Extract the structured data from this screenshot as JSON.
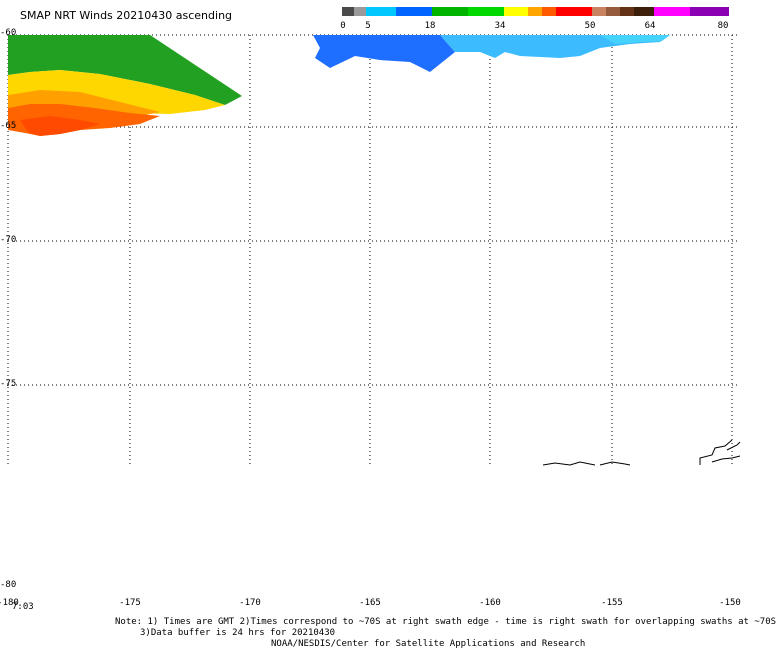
{
  "title": "SMAP NRT Winds 20210430 ascending",
  "colorbar": {
    "labels": [
      "0",
      "5",
      "18",
      "34",
      "50",
      "64",
      "80"
    ],
    "colors": [
      "#4a4a4a",
      "#9a9a9a",
      "#00c8ff",
      "#0064ff",
      "#00b400",
      "#00e000",
      "#ffff00",
      "#ffa500",
      "#ff5a00",
      "#ff0000",
      "#e60000",
      "#b46e50",
      "#824628",
      "#502814",
      "#ff00ff",
      "#c800c8",
      "#6e00a0"
    ]
  },
  "axes": {
    "lat_labels": [
      "-60",
      "-65",
      "-70",
      "-75",
      "-80"
    ],
    "lon_labels": [
      "-180",
      "-175",
      "-170",
      "-165",
      "-160",
      "-155",
      "-150"
    ],
    "time_label": "7:03"
  },
  "notes": {
    "line1": "Note: 1) Times are GMT 2)Times correspond to ~70S at right swath edge - time is right swath for overlapping swaths at ~70S",
    "line2": "3)Data buffer is 24 hrs for 20210430",
    "line3": "NOAA/NESDIS/Center for Satellite Applications and Research"
  },
  "legend_colors": {
    "green": "#1e9b1e",
    "yellow": "#ffd200",
    "orange": "#ff6a00",
    "blue": "#1e6eff",
    "lightblue": "#3cc8ff"
  }
}
